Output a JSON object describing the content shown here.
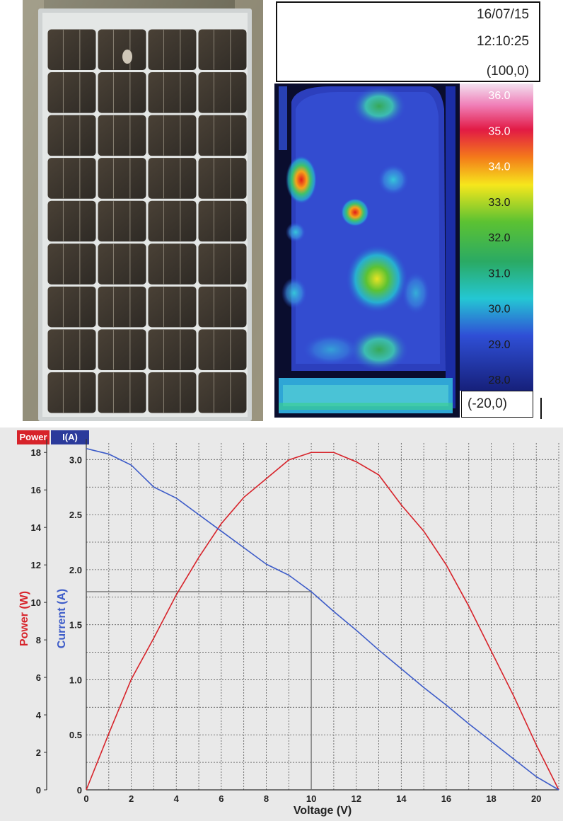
{
  "thermal": {
    "date": "16/07/15",
    "time": "12:10:25",
    "top_range": "(100,0)",
    "bottom_range": "(-20,0)",
    "scale_labels": [
      "36.0",
      "35.0",
      "34.0",
      "33.0",
      "32.0",
      "31.0",
      "30.0",
      "29.0",
      "28.0"
    ]
  },
  "colors": {
    "power": "#d7232a",
    "current": "#3c5bc8"
  },
  "chart_data": {
    "type": "line",
    "legend": [
      "Power",
      "I(A)"
    ],
    "xlabel": "Voltage (V)",
    "ylabel_left": "Power (W)",
    "ylabel_right": "Current (A)",
    "xlim": [
      0,
      21
    ],
    "ylim_power": [
      0,
      18.5
    ],
    "ylim_current": [
      0,
      3.15
    ],
    "x_ticks": [
      0,
      2,
      4,
      6,
      8,
      10,
      12,
      14,
      16,
      18,
      20
    ],
    "power_ticks": [
      0,
      2,
      4,
      6,
      8,
      10,
      12,
      14,
      16,
      18
    ],
    "current_ticks": [
      "0",
      "0.5",
      "1.0",
      "1.5",
      "2.0",
      "2.5",
      "3.0"
    ],
    "current_tick_values": [
      0,
      0.5,
      1.0,
      1.5,
      2.0,
      2.5,
      3.0
    ],
    "mpp": {
      "voltage": 10.0,
      "current": 1.8
    },
    "series": [
      {
        "name": "Power",
        "x": [
          0,
          1,
          2,
          3,
          4,
          5,
          6,
          7,
          8,
          9,
          10,
          11,
          12,
          13,
          14,
          15,
          16,
          17,
          18,
          19,
          20,
          21
        ],
        "y": [
          0,
          3.0,
          5.9,
          8.1,
          10.4,
          12.4,
          14.2,
          15.6,
          16.6,
          17.6,
          18.0,
          18.0,
          17.5,
          16.8,
          15.2,
          13.8,
          12.0,
          9.8,
          7.4,
          5.0,
          2.4,
          0
        ]
      },
      {
        "name": "I(A)",
        "x": [
          0,
          1,
          2,
          3,
          4,
          5,
          6,
          7,
          8,
          9,
          10,
          11,
          12,
          13,
          14,
          15,
          16,
          17,
          18,
          19,
          20,
          21
        ],
        "y": [
          3.1,
          3.05,
          2.95,
          2.75,
          2.65,
          2.5,
          2.35,
          2.2,
          2.05,
          1.95,
          1.8,
          1.62,
          1.45,
          1.27,
          1.1,
          0.93,
          0.77,
          0.6,
          0.44,
          0.28,
          0.12,
          0.0
        ]
      }
    ]
  }
}
